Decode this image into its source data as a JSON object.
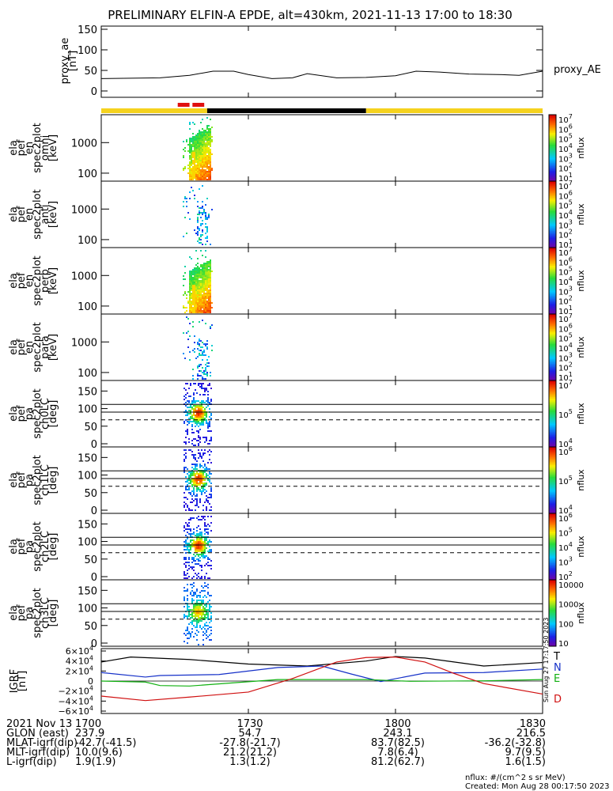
{
  "chart_data": {
    "type": "spectrogram",
    "title": "PRELIMINARY ELFIN-A EPDE, alt=430km, 2021-11-13 17:00 to 18:30",
    "time_ticks": [
      "1700",
      "1730",
      "1800",
      "1830"
    ],
    "time_range_hours": [
      17.0,
      18.5
    ],
    "ae": {
      "ylabel": "proxy_ae [nT]",
      "legend": "proxy_AE",
      "ylim": [
        0,
        150
      ],
      "yticks": [
        "150",
        "100",
        "50",
        "0"
      ],
      "x": [
        17.0,
        17.2,
        17.3,
        17.38,
        17.45,
        17.5,
        17.58,
        17.65,
        17.7,
        17.8,
        17.9,
        18.0,
        18.07,
        18.15,
        18.25,
        18.35,
        18.42,
        18.5
      ],
      "y": [
        30,
        32,
        38,
        48,
        48,
        40,
        30,
        32,
        42,
        32,
        33,
        37,
        48,
        46,
        41,
        40,
        38,
        48
      ]
    },
    "status_bar": {
      "colors": {
        "yellow": "#f5d21e",
        "black": "#000000",
        "red": "#e01010"
      },
      "segments": [
        {
          "start": 17.0,
          "end": 17.36,
          "color": "yellow"
        },
        {
          "start": 17.36,
          "end": 17.9,
          "color": "black"
        },
        {
          "start": 17.9,
          "end": 18.5,
          "color": "yellow"
        }
      ],
      "red_marks": [
        {
          "start": 17.26,
          "end": 17.3
        },
        {
          "start": 17.31,
          "end": 17.35
        }
      ]
    },
    "energy_panels": [
      {
        "ylabel": [
          "ela",
          "pef",
          "en",
          "spec2plot",
          "omni",
          "[keV]"
        ]
      },
      {
        "ylabel": [
          "ela",
          "pef",
          "en",
          "spec2plot",
          "anti",
          "[keV]"
        ]
      },
      {
        "ylabel": [
          "ela",
          "pef",
          "en",
          "spec2plot",
          "perp",
          "[keV]"
        ]
      },
      {
        "ylabel": [
          "ela",
          "pef",
          "en",
          "spec2plot",
          "para",
          "[keV]"
        ]
      }
    ],
    "energy_yticks": [
      "1000",
      "100"
    ],
    "pitch_panels": [
      {
        "ylabel": [
          "ela",
          "pef",
          "pa",
          "spec2plot",
          "ch0LC",
          "[deg]"
        ]
      },
      {
        "ylabel": [
          "ela",
          "pef",
          "pa",
          "spec2plot",
          "ch1LC",
          "[deg]"
        ]
      },
      {
        "ylabel": [
          "ela",
          "pef",
          "pa",
          "spec2plot",
          "ch2LC",
          "[deg]"
        ]
      },
      {
        "ylabel": [
          "ela",
          "pef",
          "pa",
          "spec2plot",
          "ch3LC",
          "[deg]"
        ]
      }
    ],
    "pitch_yticks": [
      "150",
      "100",
      "50",
      "0"
    ],
    "colorbars": [
      {
        "label": "nflux",
        "ticks": [
          "10",
          "10",
          "10",
          "10",
          "10",
          "10",
          "10"
        ],
        "exps": [
          "7",
          "6",
          "5",
          "4",
          "3",
          "2",
          "1"
        ]
      },
      {
        "label": "nflux",
        "ticks": [
          "10",
          "10",
          "10",
          "10",
          "10",
          "10",
          "10"
        ],
        "exps": [
          "7",
          "6",
          "5",
          "4",
          "3",
          "2",
          "1"
        ]
      },
      {
        "label": "nflux",
        "ticks": [
          "10",
          "10",
          "10",
          "10",
          "10",
          "10",
          "10"
        ],
        "exps": [
          "7",
          "6",
          "5",
          "4",
          "3",
          "2",
          "1"
        ]
      },
      {
        "label": "nflux",
        "ticks": [
          "10",
          "10",
          "10",
          "10",
          "10",
          "10",
          "10"
        ],
        "exps": [
          "7",
          "6",
          "5",
          "4",
          "3",
          "2",
          "1"
        ]
      },
      {
        "label": "nflux",
        "ticks": [
          "10",
          "10",
          "10"
        ],
        "exps": [
          "7",
          "5",
          "4"
        ]
      },
      {
        "label": "nflux",
        "ticks": [
          "10",
          "10",
          "10"
        ],
        "exps": [
          "6",
          "5",
          "4"
        ]
      },
      {
        "label": "nflux",
        "ticks": [
          "10",
          "10",
          "10",
          "10",
          "10"
        ],
        "exps": [
          "6",
          "5",
          "4",
          "3",
          "2"
        ]
      },
      {
        "label": "nflux",
        "ticks": [
          "10000",
          "1000",
          "100",
          "10"
        ],
        "exps": [
          "",
          "",
          "",
          ""
        ]
      }
    ],
    "igrf": {
      "ylabel": "IGRF [nT]",
      "yticks": [
        "6×10",
        "4×10",
        "2×10",
        "0",
        "−2×10",
        "−4×10",
        "−6×10"
      ],
      "yexp": "4",
      "ylim": [
        -60000,
        60000
      ],
      "legend": [
        {
          "name": "T",
          "color": "#000000"
        },
        {
          "name": "N",
          "color": "#1530c8"
        },
        {
          "name": "E",
          "color": "#10b010"
        },
        {
          "name": "D",
          "color": "#d01010"
        }
      ],
      "series": [
        {
          "name": "T",
          "color": "#000000",
          "x": [
            17.0,
            17.1,
            17.3,
            17.5,
            17.7,
            17.9,
            18.0,
            18.1,
            18.3,
            18.5
          ],
          "y": [
            38000,
            48000,
            43000,
            34000,
            30000,
            40000,
            49000,
            46000,
            30000,
            37000
          ]
        },
        {
          "name": "N",
          "color": "#1530c8",
          "x": [
            17.0,
            17.15,
            17.2,
            17.4,
            17.6,
            17.75,
            17.85,
            17.95,
            18.1,
            18.3,
            18.5
          ],
          "y": [
            17000,
            8000,
            11000,
            13000,
            27000,
            30000,
            14000,
            -1000,
            16000,
            17000,
            24000
          ]
        },
        {
          "name": "E",
          "color": "#10b010",
          "x": [
            17.0,
            17.15,
            17.2,
            17.3,
            17.6,
            17.9,
            18.05,
            18.3,
            18.5
          ],
          "y": [
            0,
            -2000,
            -9000,
            -10000,
            3000,
            3000,
            -500,
            500,
            3000
          ]
        },
        {
          "name": "D",
          "color": "#d01010",
          "x": [
            17.0,
            17.15,
            17.3,
            17.5,
            17.65,
            17.8,
            17.9,
            18.0,
            18.1,
            18.2,
            18.3,
            18.5
          ],
          "y": [
            -30000,
            -39000,
            -32000,
            -22000,
            5000,
            38000,
            47000,
            48000,
            38000,
            15000,
            -5000,
            -26000
          ]
        }
      ]
    },
    "side_stamp": "Sun Aug 27 17:17:50 2023",
    "orbit_table": {
      "rows": [
        {
          "label": "2021 Nov 13",
          "values": [
            "1700",
            "1730",
            "1800",
            "1830"
          ]
        },
        {
          "label": "GLON (east)",
          "values": [
            "237.9",
            "54.7",
            "243.1",
            "216.5"
          ]
        },
        {
          "label": "MLAT-igrf(dip)",
          "values": [
            "-42.7(-41.5)",
            "-27.8(-21.7)",
            "83.7(82.5)",
            "-36.2(-32.8)"
          ]
        },
        {
          "label": "MLT-igrf(dip)",
          "values": [
            "10.0(9.6)",
            "21.2(21.2)",
            "7.8(6.4)",
            "9.7(9.5)"
          ]
        },
        {
          "label": "L-igrf(dip)",
          "values": [
            "1.9(1.9)",
            "1.3(1.2)",
            "81.2(62.7)",
            "1.6(1.5)"
          ]
        }
      ]
    },
    "footer": {
      "units": "nflux: #/(cm^2 s sr MeV)",
      "created": "Created: Mon Aug 28 00:17:50 2023"
    }
  }
}
